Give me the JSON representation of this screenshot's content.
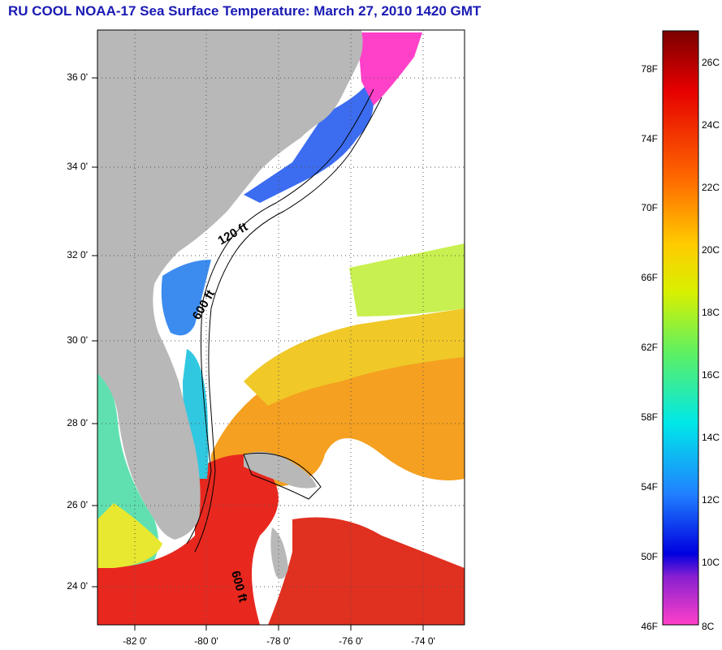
{
  "title": "RU COOL  NOAA-17  Sea Surface Temperature:  March 27, 2010 1420 GMT",
  "lat_labels": [
    "36 0'",
    "34 0'",
    "32 0'",
    "30 0'",
    "28 0'",
    "26 0'",
    "24 0'"
  ],
  "lon_labels": [
    "-82 0'",
    "-80 0'",
    "-78 0'",
    "-76 0'",
    "-74 0'"
  ],
  "contour_labels": {
    "shelf": "120 ft",
    "slope": "600 ft",
    "bahamas": "600 ft"
  },
  "colorbar": {
    "fahrenheit": [
      "78F",
      "74F",
      "70F",
      "66F",
      "62F",
      "58F",
      "54F",
      "50F",
      "46F"
    ],
    "celsius": [
      "26C",
      "24C",
      "22C",
      "20C",
      "18C",
      "16C",
      "14C",
      "12C",
      "10C",
      "8C"
    ]
  },
  "colors": {
    "title": "#1a1ab4",
    "land": "#b8b8b8",
    "cold": "#1e50e6",
    "warm": "#e61e1e",
    "pink": "#ff40c8"
  }
}
